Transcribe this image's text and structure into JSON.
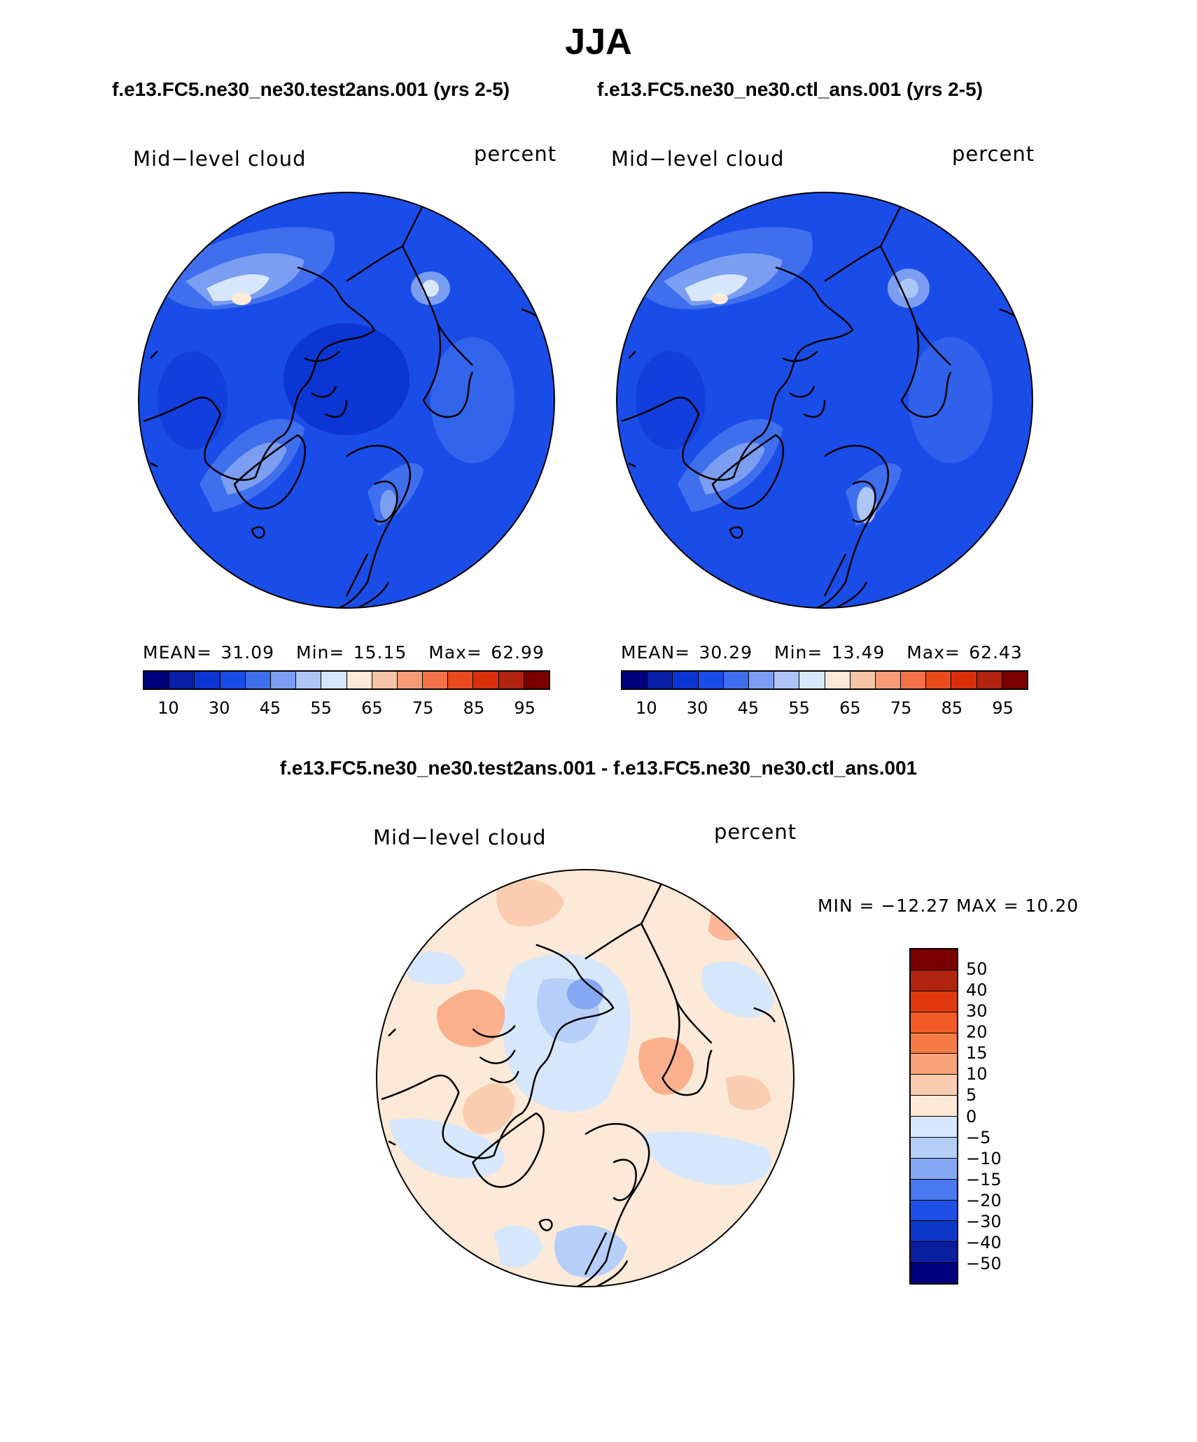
{
  "season": "JJA",
  "header": {
    "left_case": "f.e13.FC5.ne30_ne30.test2ans.001 (yrs 2-5)",
    "right_case": "f.e13.FC5.ne30_ne30.ctl_ans.001 (yrs 2-5)"
  },
  "panel_left": {
    "variable": "Mid−level cloud",
    "units": "percent",
    "mean_label": "MEAN=",
    "mean": "31.09",
    "min_label": "Min=",
    "min": "15.15",
    "max_label": "Max=",
    "max": "62.99"
  },
  "panel_right": {
    "variable": "Mid−level cloud",
    "units": "percent",
    "mean_label": "MEAN=",
    "mean": "30.29",
    "min_label": "Min=",
    "min": "13.49",
    "max_label": "Max=",
    "max": "62.43"
  },
  "colorbar_levels": {
    "ticks": [
      "10",
      "30",
      "45",
      "55",
      "65",
      "75",
      "85",
      "95"
    ],
    "colors": [
      "#00007f",
      "#0a1fa8",
      "#0c36d4",
      "#1a4de8",
      "#3f6fed",
      "#7b9ef2",
      "#adc6f7",
      "#d7e7fb",
      "#fde9d7",
      "#f8c4a6",
      "#f59c77",
      "#f3724a",
      "#ea4a1d",
      "#d9300b",
      "#b02410",
      "#7a0000"
    ]
  },
  "diff_panel": {
    "title": "f.e13.FC5.ne30_ne30.test2ans.001 - f.e13.FC5.ne30_ne30.ctl_ans.001",
    "variable": "Mid−level cloud",
    "units": "percent",
    "minmax": "MIN = −12.27 MAX =   10.20",
    "ticks": [
      "50",
      "40",
      "30",
      "20",
      "15",
      "10",
      "5",
      "0",
      "−5",
      "−10",
      "−15",
      "−20",
      "−30",
      "−40",
      "−50"
    ],
    "colors": [
      "#7a0000",
      "#b02410",
      "#e0390f",
      "#f05a25",
      "#f57a45",
      "#f9a17a",
      "#fbcdb0",
      "#fde9d7",
      "#d7e7fb",
      "#b6cff8",
      "#86a8f3",
      "#4a78ef",
      "#1e50e6",
      "#0d37c9",
      "#0a1fa0",
      "#00007f"
    ]
  }
}
